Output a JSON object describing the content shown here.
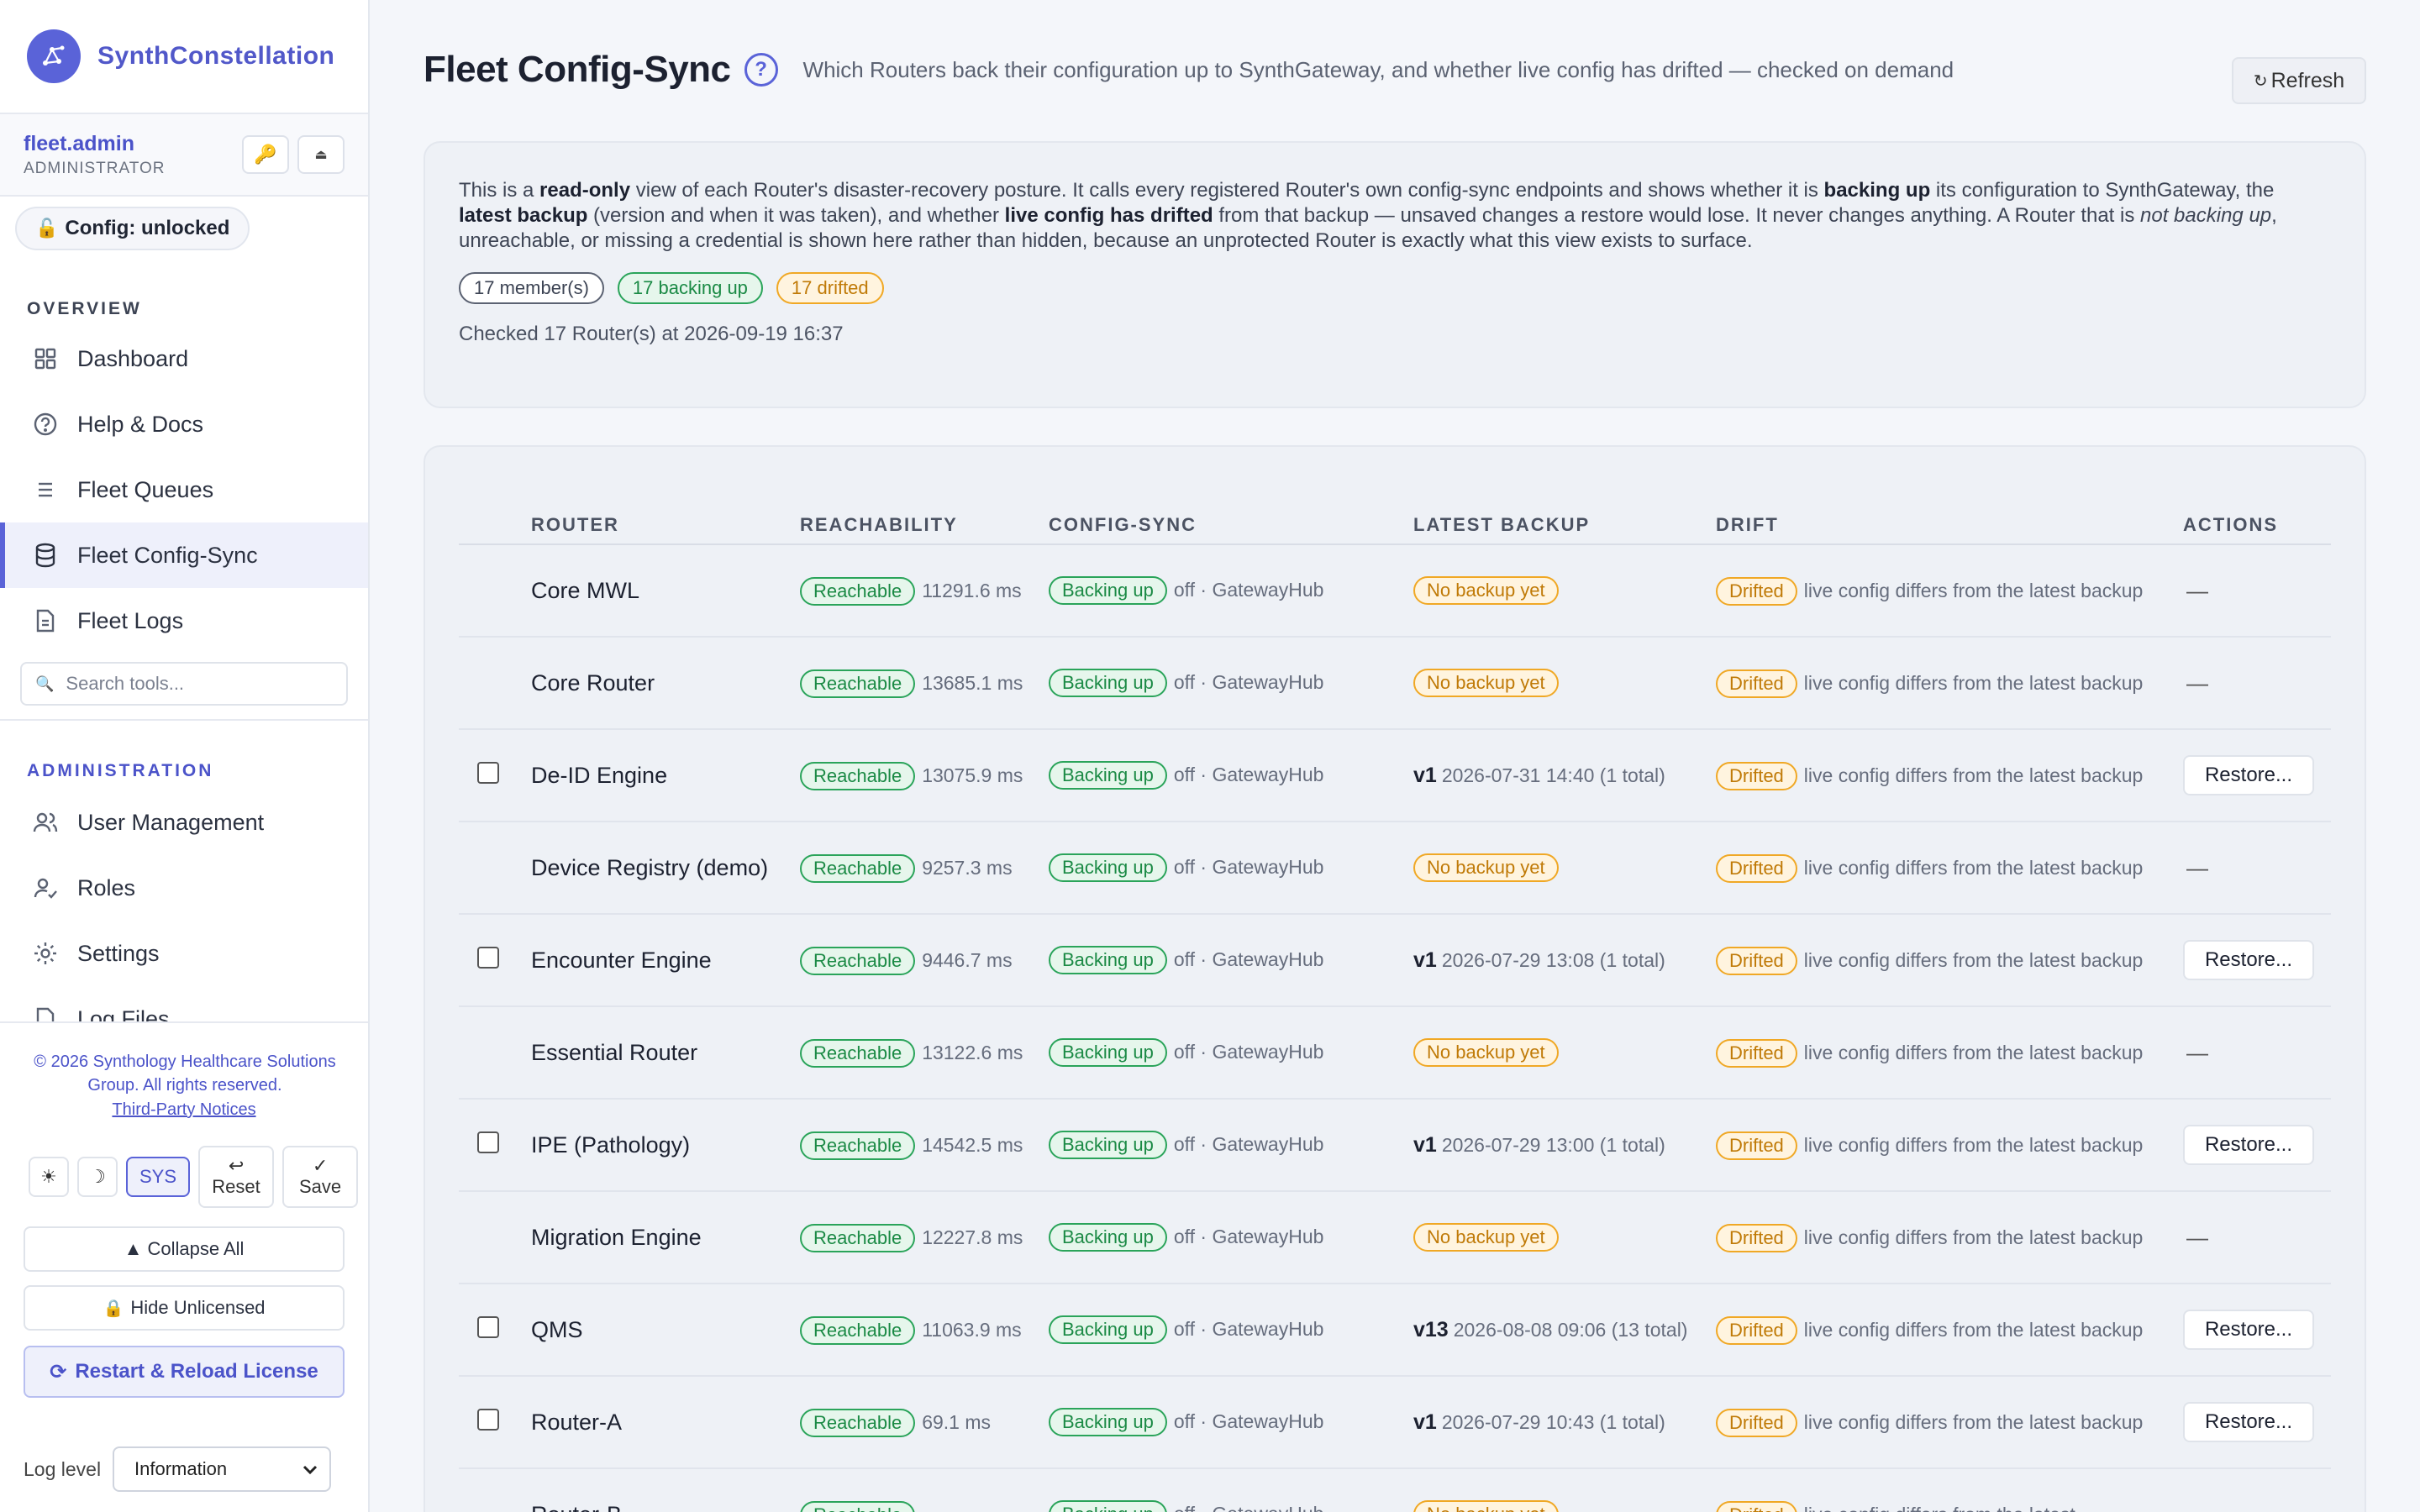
{
  "brand": {
    "name": "SynthConstellation"
  },
  "user": {
    "name": "fleet.admin",
    "role": "ADMINISTRATOR",
    "key_icon": "key-icon",
    "collapse_icon": "eject-icon"
  },
  "config_status": {
    "label": "Config: unlocked",
    "icon": "unlock-icon"
  },
  "sidebar": {
    "overview_label": "OVERVIEW",
    "admin_label": "ADMINISTRATION",
    "overview_items": [
      {
        "label": "Dashboard",
        "icon": "grid-icon"
      },
      {
        "label": "Help & Docs",
        "icon": "help-icon"
      },
      {
        "label": "Fleet Queues",
        "icon": "list-icon"
      },
      {
        "label": "Fleet Config-Sync",
        "icon": "database-icon"
      },
      {
        "label": "Fleet Logs",
        "icon": "document-icon"
      }
    ],
    "search_placeholder": "Search tools...",
    "admin_items": [
      {
        "label": "User Management",
        "icon": "users-icon"
      },
      {
        "label": "Roles",
        "icon": "user-role-icon"
      },
      {
        "label": "Settings",
        "icon": "gear-icon"
      },
      {
        "label": "Log Files",
        "icon": "file-icon"
      }
    ],
    "accent_color": "#5a63d8"
  },
  "footer": {
    "copyright": "© 2026 Synthology Healthcare Solutions Group. All rights reserved.",
    "third_party": "Third-Party Notices",
    "theme_light": "☀",
    "theme_dark": "☽",
    "theme_sys": "SYS",
    "reset_label": "Reset",
    "save_label": "Save",
    "collapse_all": "▲ Collapse All",
    "hide_unlicensed": "Hide Unlicensed",
    "restart_reload": "Restart & Reload License",
    "log_level_label": "Log level",
    "log_level_value": "Information"
  },
  "page": {
    "title": "Fleet Config-Sync",
    "subtitle": "Which Routers back their configuration up to SynthGateway, and whether live config has drifted — checked on demand",
    "refresh_label": "Refresh"
  },
  "info": {
    "p1": "This is a ",
    "b1": "read-only",
    "p2": " view of each Router's disaster-recovery posture. It calls every registered Router's own config-sync endpoints and shows whether it is ",
    "b2": "backing up",
    "p3": " its configuration to SynthGateway, the ",
    "b3": "latest backup",
    "p4": " (version and when it was taken), and whether ",
    "b4": "live config has drifted",
    "p5": " from that backup — unsaved changes a restore would lose. It never changes anything. A Router that is ",
    "i1": "not backing up",
    "p6": ", unreachable, or missing a credential is shown here rather than hidden, because an unprotected Router is exactly what this view exists to surface.",
    "badge_members": "17 member(s)",
    "badge_backing": "17 backing up",
    "badge_drifted": "17 drifted",
    "checked": "Checked 17 Router(s) at 2026-09-19 16:37"
  },
  "table": {
    "headers": {
      "router": "ROUTER",
      "reachability": "REACHABILITY",
      "config_sync": "CONFIG-SYNC",
      "latest_backup": "LATEST BACKUP",
      "drift": "DRIFT",
      "actions": "ACTIONS"
    },
    "rows": [
      {
        "checkbox": false,
        "router": "Core MWL",
        "reach_status": "Reachable",
        "reach_ms": "11291.6 ms",
        "sync_status": "Backing up",
        "sync_detail": "off · GatewayHub",
        "backup_none": "No backup yet",
        "backup_ver": "",
        "backup_detail": "",
        "drift_status": "Drifted",
        "drift_detail": "live config differs from the latest backup",
        "action": "—"
      },
      {
        "checkbox": false,
        "router": "Core Router",
        "reach_status": "Reachable",
        "reach_ms": "13685.1 ms",
        "sync_status": "Backing up",
        "sync_detail": "off · GatewayHub",
        "backup_none": "No backup yet",
        "backup_ver": "",
        "backup_detail": "",
        "drift_status": "Drifted",
        "drift_detail": "live config differs from the latest backup",
        "action": "—"
      },
      {
        "checkbox": true,
        "router": "De-ID Engine",
        "reach_status": "Reachable",
        "reach_ms": "13075.9 ms",
        "sync_status": "Backing up",
        "sync_detail": "off · GatewayHub",
        "backup_none": "",
        "backup_ver": "v1",
        "backup_detail": "2026-07-31 14:40 (1 total)",
        "drift_status": "Drifted",
        "drift_detail": "live config differs from the latest backup",
        "action": "Restore..."
      },
      {
        "checkbox": false,
        "router": "Device Registry (demo)",
        "reach_status": "Reachable",
        "reach_ms": "9257.3 ms",
        "sync_status": "Backing up",
        "sync_detail": "off · GatewayHub",
        "backup_none": "No backup yet",
        "backup_ver": "",
        "backup_detail": "",
        "drift_status": "Drifted",
        "drift_detail": "live config differs from the latest backup",
        "action": "—"
      },
      {
        "checkbox": true,
        "router": "Encounter Engine",
        "reach_status": "Reachable",
        "reach_ms": "9446.7 ms",
        "sync_status": "Backing up",
        "sync_detail": "off · GatewayHub",
        "backup_none": "",
        "backup_ver": "v1",
        "backup_detail": "2026-07-29 13:08 (1 total)",
        "drift_status": "Drifted",
        "drift_detail": "live config differs from the latest backup",
        "action": "Restore..."
      },
      {
        "checkbox": false,
        "router": "Essential Router",
        "reach_status": "Reachable",
        "reach_ms": "13122.6 ms",
        "sync_status": "Backing up",
        "sync_detail": "off · GatewayHub",
        "backup_none": "No backup yet",
        "backup_ver": "",
        "backup_detail": "",
        "drift_status": "Drifted",
        "drift_detail": "live config differs from the latest backup",
        "action": "—"
      },
      {
        "checkbox": true,
        "router": "IPE (Pathology)",
        "reach_status": "Reachable",
        "reach_ms": "14542.5 ms",
        "sync_status": "Backing up",
        "sync_detail": "off · GatewayHub",
        "backup_none": "",
        "backup_ver": "v1",
        "backup_detail": "2026-07-29 13:00 (1 total)",
        "drift_status": "Drifted",
        "drift_detail": "live config differs from the latest backup",
        "action": "Restore..."
      },
      {
        "checkbox": false,
        "router": "Migration Engine",
        "reach_status": "Reachable",
        "reach_ms": "12227.8 ms",
        "sync_status": "Backing up",
        "sync_detail": "off · GatewayHub",
        "backup_none": "No backup yet",
        "backup_ver": "",
        "backup_detail": "",
        "drift_status": "Drifted",
        "drift_detail": "live config differs from the latest backup",
        "action": "—"
      },
      {
        "checkbox": true,
        "router": "QMS",
        "reach_status": "Reachable",
        "reach_ms": "11063.9 ms",
        "sync_status": "Backing up",
        "sync_detail": "off · GatewayHub",
        "backup_none": "",
        "backup_ver": "v13",
        "backup_detail": "2026-08-08 09:06 (13 total)",
        "drift_status": "Drifted",
        "drift_detail": "live config differs from the latest backup",
        "action": "Restore..."
      },
      {
        "checkbox": true,
        "router": "Router-A",
        "reach_status": "Reachable",
        "reach_ms": "69.1 ms",
        "sync_status": "Backing up",
        "sync_detail": "off · GatewayHub",
        "backup_none": "",
        "backup_ver": "v1",
        "backup_detail": "2026-07-29 10:43 (1 total)",
        "drift_status": "Drifted",
        "drift_detail": "live config differs from the latest backup",
        "action": "Restore..."
      },
      {
        "checkbox": false,
        "router": "Router-B",
        "reach_status": "Reachable",
        "reach_ms": "",
        "sync_status": "Backing up",
        "sync_detail": "off · GatewayHub",
        "backup_none": "No backup yet",
        "backup_ver": "",
        "backup_detail": "",
        "drift_status": "Drifted",
        "drift_detail": "live config differs from the latest",
        "action": ""
      }
    ]
  }
}
